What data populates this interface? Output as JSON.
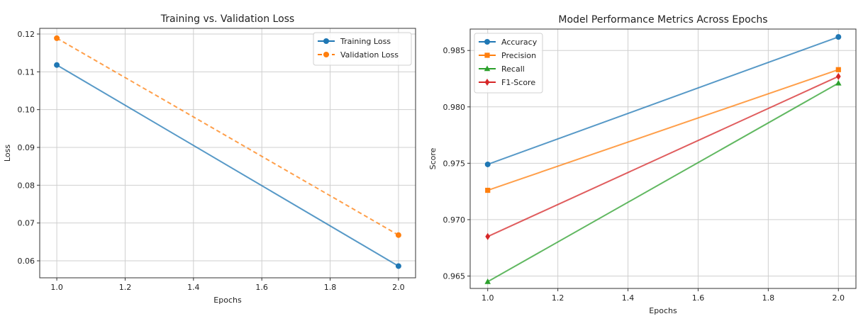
{
  "chart_data": [
    {
      "type": "line",
      "title": "Training vs. Validation Loss",
      "xlabel": "Epochs",
      "ylabel": "Loss",
      "xlim": [
        0.95,
        2.05
      ],
      "ylim": [
        0.0555,
        0.1215
      ],
      "xticks": [
        1.0,
        1.2,
        1.4,
        1.6,
        1.8,
        2.0
      ],
      "xtick_labels": [
        "1.0",
        "1.2",
        "1.4",
        "1.6",
        "1.8",
        "2.0"
      ],
      "yticks": [
        0.06,
        0.07,
        0.08,
        0.09,
        0.1,
        0.11,
        0.12
      ],
      "ytick_labels": [
        "0.06",
        "0.07",
        "0.08",
        "0.09",
        "0.10",
        "0.11",
        "0.12"
      ],
      "grid": true,
      "legend": "top-right",
      "x": [
        1.0,
        2.0
      ],
      "series": [
        {
          "name": "Training Loss",
          "values": [
            0.1118,
            0.0586
          ],
          "color": "#1f77b4",
          "marker": "circle",
          "dash": "solid"
        },
        {
          "name": "Validation Loss",
          "values": [
            0.1189,
            0.0668
          ],
          "color": "#ff7f0e",
          "marker": "circle",
          "dash": "dashed"
        }
      ]
    },
    {
      "type": "line",
      "title": "Model Performance Metrics Across Epochs",
      "xlabel": "Epochs",
      "ylabel": "Score",
      "xlim": [
        0.95,
        2.05
      ],
      "ylim": [
        0.9639,
        0.9869
      ],
      "xticks": [
        1.0,
        1.2,
        1.4,
        1.6,
        1.8,
        2.0
      ],
      "xtick_labels": [
        "1.0",
        "1.2",
        "1.4",
        "1.6",
        "1.8",
        "2.0"
      ],
      "yticks": [
        0.965,
        0.97,
        0.975,
        0.98,
        0.985
      ],
      "ytick_labels": [
        "0.965",
        "0.970",
        "0.975",
        "0.980",
        "0.985"
      ],
      "grid": true,
      "legend": "top-left",
      "x": [
        1.0,
        2.0
      ],
      "series": [
        {
          "name": "Accuracy",
          "values": [
            0.9749,
            0.9862
          ],
          "color": "#1f77b4",
          "marker": "circle",
          "dash": "solid"
        },
        {
          "name": "Precision",
          "values": [
            0.9726,
            0.9833
          ],
          "color": "#ff7f0e",
          "marker": "square",
          "dash": "solid"
        },
        {
          "name": "Recall",
          "values": [
            0.9645,
            0.9821
          ],
          "color": "#2ca02c",
          "marker": "triangle",
          "dash": "solid"
        },
        {
          "name": "F1-Score",
          "values": [
            0.9685,
            0.9827
          ],
          "color": "#d62728",
          "marker": "diamond",
          "dash": "solid"
        }
      ]
    }
  ]
}
